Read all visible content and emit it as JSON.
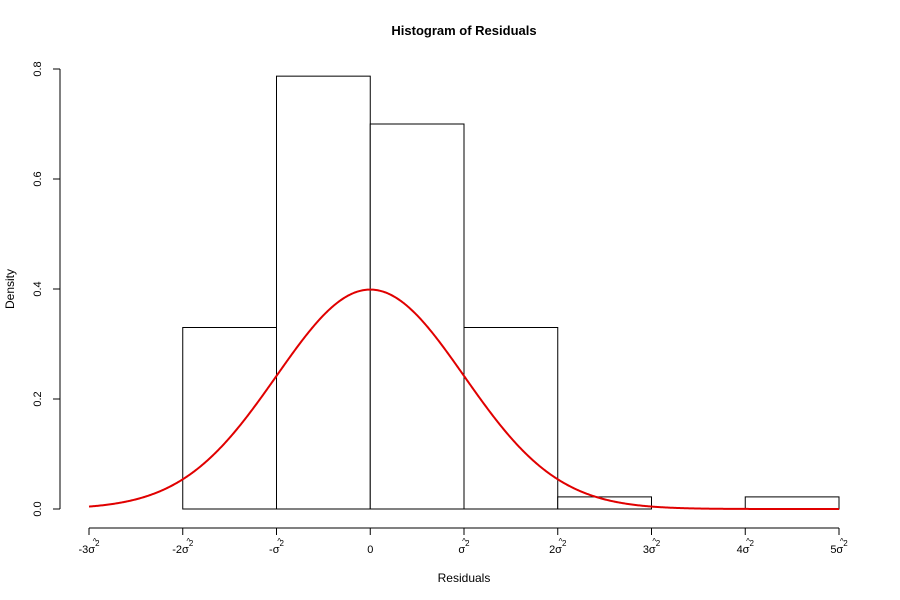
{
  "chart_data": {
    "type": "bar",
    "title": "Histogram of Residuals",
    "xlabel": "Residuals",
    "ylabel": "Density",
    "xlim": [
      -3,
      5
    ],
    "ylim": [
      0,
      0.8
    ],
    "x_ticks": [
      {
        "value": -3,
        "coef": "-3",
        "symbol": "σ",
        "hat": "^",
        "sup": "2"
      },
      {
        "value": -2,
        "coef": "-2",
        "symbol": "σ",
        "hat": "^",
        "sup": "2"
      },
      {
        "value": -1,
        "coef": "-",
        "symbol": "σ",
        "hat": "^",
        "sup": "2"
      },
      {
        "value": 0,
        "coef": "0",
        "symbol": "",
        "hat": "",
        "sup": ""
      },
      {
        "value": 1,
        "coef": "",
        "symbol": "σ",
        "hat": "^",
        "sup": "2"
      },
      {
        "value": 2,
        "coef": "2",
        "symbol": "σ",
        "hat": "^",
        "sup": "2"
      },
      {
        "value": 3,
        "coef": "3",
        "symbol": "σ",
        "hat": "^",
        "sup": "2"
      },
      {
        "value": 4,
        "coef": "4",
        "symbol": "σ",
        "hat": "^",
        "sup": "2"
      },
      {
        "value": 5,
        "coef": "5",
        "symbol": "σ",
        "hat": "^",
        "sup": "2"
      }
    ],
    "y_ticks": [
      {
        "value": 0,
        "label": "0.0"
      },
      {
        "value": 0.2,
        "label": "0.2"
      },
      {
        "value": 0.4,
        "label": "0.4"
      },
      {
        "value": 0.6,
        "label": "0.6"
      },
      {
        "value": 0.8,
        "label": "0.8"
      }
    ],
    "bins": [
      {
        "start": -2,
        "end": -1,
        "density": 0.33
      },
      {
        "start": -1,
        "end": 0,
        "density": 0.787
      },
      {
        "start": 0,
        "end": 1,
        "density": 0.7
      },
      {
        "start": 1,
        "end": 2,
        "density": 0.33
      },
      {
        "start": 2,
        "end": 3,
        "density": 0.022
      },
      {
        "start": 3,
        "end": 4,
        "density": 0.0
      },
      {
        "start": 4,
        "end": 5,
        "density": 0.022
      }
    ],
    "overlay": {
      "type": "normal-density",
      "mean": 0,
      "sd": 1,
      "color": "#e00000"
    },
    "grid": false
  }
}
